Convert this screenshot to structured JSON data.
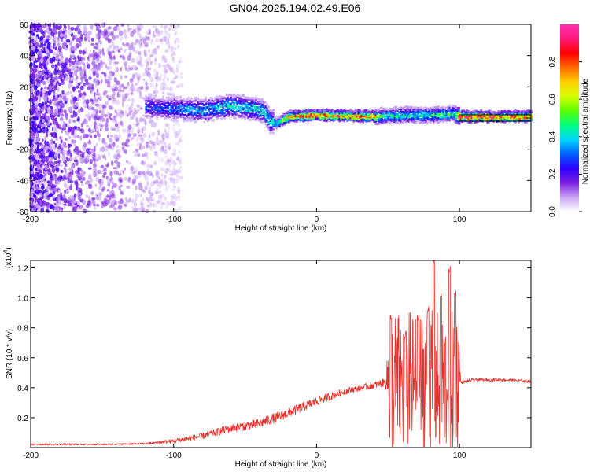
{
  "figure": {
    "title": "GN04.2025.194.02.49.E06"
  },
  "chart_data": [
    {
      "type": "heatmap",
      "xlabel": "Height of straight line (km)",
      "ylabel": "Frequency (Hz)",
      "xlim": [
        -200,
        150
      ],
      "ylim": [
        -60,
        60
      ],
      "x_ticks": [
        -200,
        -100,
        0,
        100
      ],
      "x_tick_labels": [
        "-200",
        "-100",
        "0",
        "100"
      ],
      "y_ticks": [
        -60,
        -40,
        -20,
        0,
        20,
        40,
        60
      ],
      "y_tick_labels": [
        "-60",
        "-40",
        "-20",
        "0",
        "20",
        "40",
        "60"
      ],
      "colorbar": {
        "label": "Normalized spectral amplitude",
        "range": [
          0,
          1
        ],
        "ticks": [
          0.0,
          0.2,
          0.4,
          0.6,
          0.8
        ],
        "tick_labels": [
          "0.0",
          "0.2",
          "0.4",
          "0.6",
          "0.8"
        ],
        "colormap": [
          "#ffffff",
          "#c9a3f5",
          "#7a1fe0",
          "#2e00ff",
          "#0060ff",
          "#00d7ff",
          "#00ff80",
          "#5cff00",
          "#d4ff00",
          "#ffd000",
          "#ff6a00",
          "#ff0000",
          "#ff1a7a",
          "#ff2fb0"
        ]
      },
      "features": {
        "noise_region_x": [
          -200,
          -100
        ],
        "signal_start_x": -120,
        "band_center_freq": [
          [
            -120,
            7
          ],
          [
            -100,
            6
          ],
          [
            -80,
            5
          ],
          [
            -60,
            8
          ],
          [
            -45,
            6
          ],
          [
            -38,
            5
          ],
          [
            -33,
            -2
          ],
          [
            -28,
            -3
          ],
          [
            -20,
            1
          ],
          [
            0,
            2
          ],
          [
            40,
            1
          ],
          [
            60,
            2
          ],
          [
            80,
            2
          ],
          [
            95,
            3
          ],
          [
            100,
            1
          ],
          [
            150,
            1
          ]
        ],
        "band_peak_amplitude": [
          [
            -120,
            0.3
          ],
          [
            -60,
            0.45
          ],
          [
            -30,
            0.45
          ],
          [
            -20,
            0.9
          ],
          [
            40,
            0.9
          ],
          [
            45,
            0.5
          ],
          [
            95,
            0.5
          ],
          [
            100,
            0.95
          ],
          [
            150,
            0.95
          ]
        ],
        "guide_lines_freq": [
          -2,
          2
        ]
      }
    },
    {
      "type": "line",
      "xlabel": "Height of straight line (km)",
      "ylabel": "SNR (10 * v/v)",
      "y_multiplier_label": "(x10",
      "y_multiplier_exponent": "4",
      "xlim": [
        -200,
        150
      ],
      "ylim": [
        0,
        1.25
      ],
      "x_ticks": [
        -200,
        -100,
        0,
        100
      ],
      "x_tick_labels": [
        "-200",
        "-100",
        "0",
        "100"
      ],
      "y_ticks": [
        0.2,
        0.4,
        0.6,
        0.8,
        1.0,
        1.2
      ],
      "y_tick_labels": [
        "0.2",
        "0.4",
        "0.6",
        "0.8",
        "1.0",
        "1.2"
      ],
      "series": [
        {
          "color": "#e8302a",
          "trend": [
            [
              -200,
              0.02
            ],
            [
              -150,
              0.02
            ],
            [
              -120,
              0.025
            ],
            [
              -100,
              0.04
            ],
            [
              -80,
              0.07
            ],
            [
              -60,
              0.12
            ],
            [
              -40,
              0.15
            ],
            [
              -20,
              0.22
            ],
            [
              0,
              0.3
            ],
            [
              20,
              0.37
            ],
            [
              40,
              0.41
            ],
            [
              50,
              0.43
            ],
            [
              60,
              0.43
            ],
            [
              70,
              0.43
            ],
            [
              80,
              0.43
            ],
            [
              90,
              0.43
            ],
            [
              100,
              0.43
            ],
            [
              110,
              0.45
            ],
            [
              130,
              0.45
            ],
            [
              150,
              0.44
            ]
          ],
          "noise": [
            [
              -200,
              0.01
            ],
            [
              -120,
              0.01
            ],
            [
              -100,
              0.03
            ],
            [
              -60,
              0.06
            ],
            [
              -30,
              0.07
            ],
            [
              0,
              0.06
            ],
            [
              30,
              0.04
            ],
            [
              48,
              0.06
            ],
            [
              50,
              0.35
            ],
            [
              100,
              0.35
            ],
            [
              101,
              0.02
            ],
            [
              150,
              0.02
            ]
          ],
          "peaks": [
            [
              52,
              0.9
            ],
            [
              62,
              0.78
            ],
            [
              71,
              0.9
            ],
            [
              78,
              0.95
            ],
            [
              82,
              1.26
            ],
            [
              87,
              1.04
            ],
            [
              93,
              1.22
            ],
            [
              97,
              1.05
            ]
          ]
        }
      ]
    }
  ]
}
